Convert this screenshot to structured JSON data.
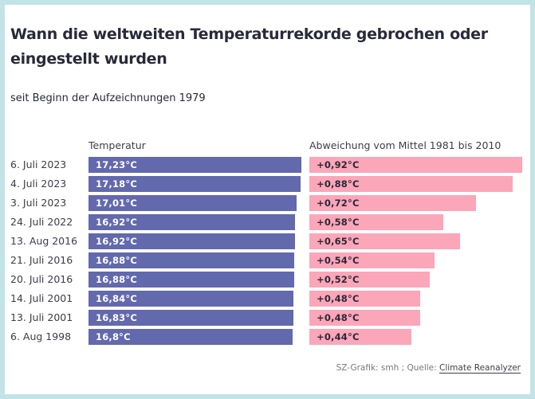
{
  "chart_data": {
    "type": "bar",
    "title": "Wann die weltweiten Temperaturrekorde gebrochen oder eingestellt wurden",
    "subtitle": "seit Beginn der Aufzeichnungen 1979",
    "categories": [
      "6. Juli 2023",
      "4. Juli 2023",
      "3. Juli 2023",
      "24. Juli 2022",
      "13. Aug 2016",
      "21. Juli 2016",
      "20. Juli 2016",
      "14. Juli 2001",
      "13. Juli 2001",
      "6. Aug 1998"
    ],
    "series": [
      {
        "name": "Temperatur",
        "values": [
          17.23,
          17.18,
          17.01,
          16.92,
          16.92,
          16.88,
          16.88,
          16.84,
          16.83,
          16.8
        ],
        "labels": [
          "17,23°C",
          "17,18°C",
          "17,01°C",
          "16,92°C",
          "16,92°C",
          "16,88°C",
          "16,88°C",
          "16,84°C",
          "16,83°C",
          "16,8°C"
        ],
        "color": "#6369ad"
      },
      {
        "name": "Abweichung vom Mittel 1981 bis 2010",
        "values": [
          0.92,
          0.88,
          0.72,
          0.58,
          0.65,
          0.54,
          0.52,
          0.48,
          0.48,
          0.44
        ],
        "labels": [
          "+0,92°C",
          "+0,88°C",
          "+0,72°C",
          "+0,58°C",
          "+0,65°C",
          "+0,54°C",
          "+0,52°C",
          "+0,48°C",
          "+0,48°C",
          "+0,44°C"
        ],
        "color": "#fca6b9"
      }
    ]
  },
  "footer": {
    "credit": "SZ-Grafik: smh ; Quelle: ",
    "source_link": "Climate Reanalyzer"
  }
}
